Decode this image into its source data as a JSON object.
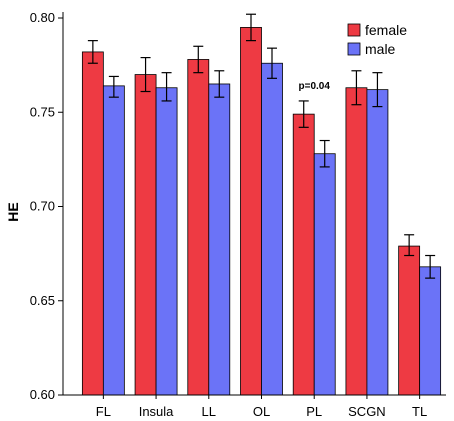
{
  "chart_data": {
    "type": "bar",
    "title": "",
    "xlabel": "",
    "ylabel": "HE",
    "ylim": [
      0.6,
      0.8
    ],
    "yticks": [
      "0.60",
      "0.65",
      "0.70",
      "0.75",
      "0.80"
    ],
    "grid": false,
    "legend_position": "top-right",
    "categories": [
      "FL",
      "Insula",
      "LL",
      "OL",
      "PL",
      "SCGN",
      "TL"
    ],
    "series": [
      {
        "name": "female",
        "color": "#ee3a43",
        "values": [
          0.782,
          0.77,
          0.778,
          0.795,
          0.749,
          0.763,
          0.679
        ],
        "err_low": [
          0.776,
          0.761,
          0.771,
          0.788,
          0.742,
          0.754,
          0.674
        ],
        "err_high": [
          0.788,
          0.779,
          0.785,
          0.802,
          0.756,
          0.772,
          0.685
        ]
      },
      {
        "name": "male",
        "color": "#6b73f7",
        "values": [
          0.764,
          0.763,
          0.765,
          0.776,
          0.728,
          0.762,
          0.668
        ],
        "err_low": [
          0.758,
          0.756,
          0.758,
          0.768,
          0.721,
          0.753,
          0.662
        ],
        "err_high": [
          0.769,
          0.771,
          0.772,
          0.784,
          0.735,
          0.771,
          0.674
        ]
      }
    ],
    "annotations": [
      {
        "text": "p=0.04",
        "category": "PL"
      }
    ]
  }
}
